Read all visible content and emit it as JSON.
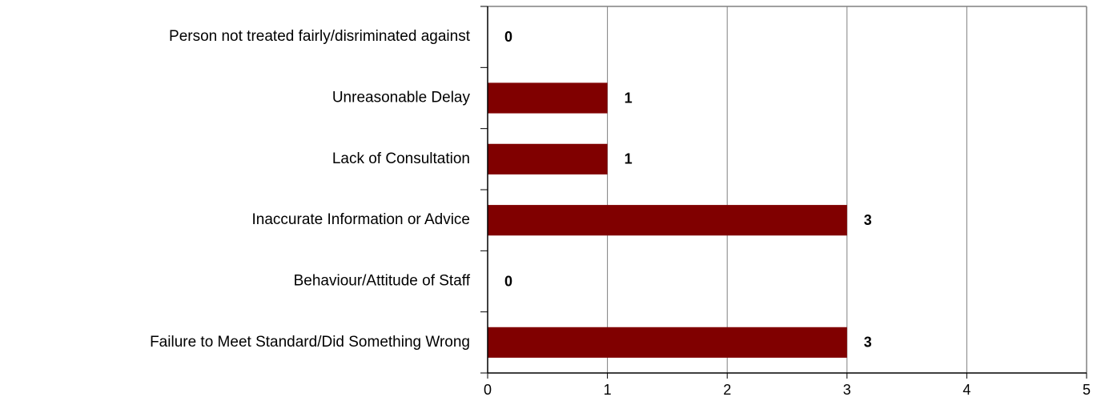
{
  "chart_data": {
    "type": "bar",
    "orientation": "horizontal",
    "categories": [
      "Person not treated fairly/disriminated against",
      "Unreasonable Delay",
      "Lack of Consultation",
      "Inaccurate Information or Advice",
      "Behaviour/Attitude of Staff",
      "Failure to Meet Standard/Did Something Wrong"
    ],
    "values": [
      0,
      1,
      1,
      3,
      0,
      3
    ],
    "color": "#800000",
    "xlim": [
      0,
      5
    ],
    "xticks": [
      0,
      1,
      2,
      3,
      4,
      5
    ],
    "grid": true
  }
}
